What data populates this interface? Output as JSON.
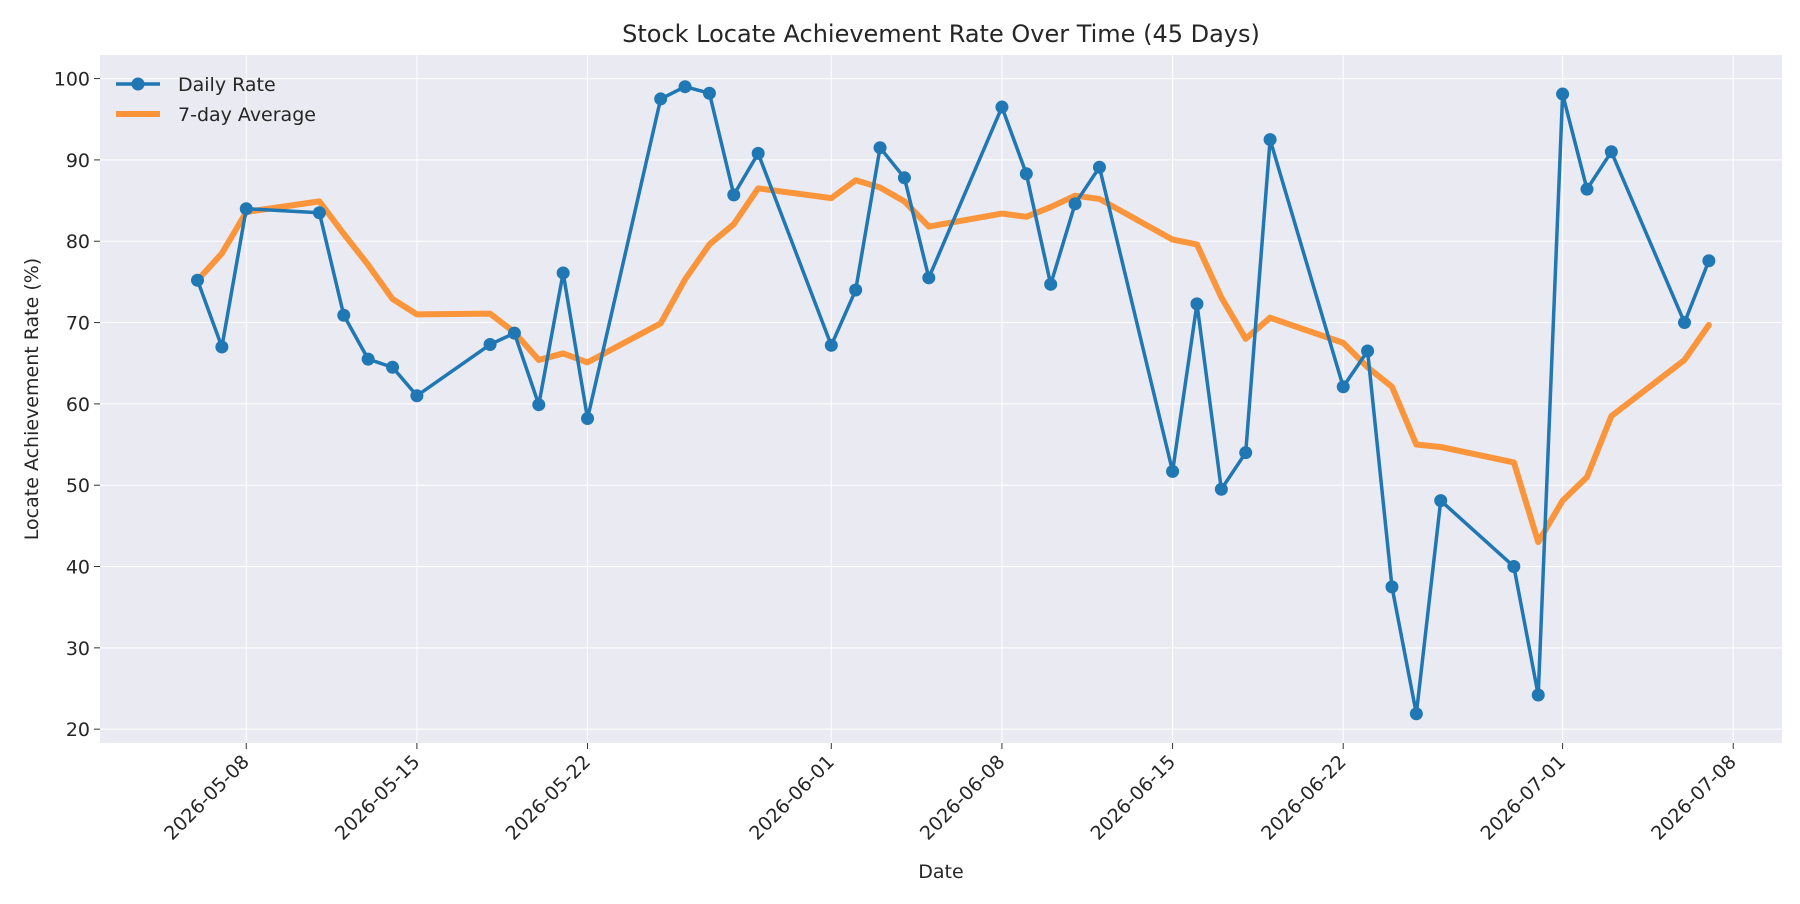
{
  "chart_data": {
    "type": "line",
    "title": "Stock Locate Achievement Rate Over Time (45 Days)",
    "xlabel": "Date",
    "ylabel": "Locate Achievement Rate (%)",
    "x_range": [
      "2026-05-02",
      "2026-07-10"
    ],
    "y_range": [
      18.3,
      102.9
    ],
    "x_ticks": [
      "2026-05-08",
      "2026-05-15",
      "2026-05-22",
      "2026-06-01",
      "2026-06-08",
      "2026-06-15",
      "2026-06-22",
      "2026-07-01",
      "2026-07-08"
    ],
    "y_ticks": [
      20,
      30,
      40,
      50,
      60,
      70,
      80,
      90,
      100
    ],
    "grid": true,
    "legend_position": "top-left",
    "colors": {
      "plot_bg": "#eaeaf2",
      "grid": "#ffffff",
      "daily": "#1f77b4",
      "average": "#ff7f0e"
    },
    "x": [
      "2026-05-06",
      "2026-05-07",
      "2026-05-08",
      "2026-05-11",
      "2026-05-12",
      "2026-05-13",
      "2026-05-14",
      "2026-05-15",
      "2026-05-18",
      "2026-05-19",
      "2026-05-20",
      "2026-05-21",
      "2026-05-22",
      "2026-05-25",
      "2026-05-26",
      "2026-05-27",
      "2026-05-28",
      "2026-05-29",
      "2026-06-01",
      "2026-06-02",
      "2026-06-03",
      "2026-06-04",
      "2026-06-05",
      "2026-06-08",
      "2026-06-09",
      "2026-06-10",
      "2026-06-11",
      "2026-06-12",
      "2026-06-15",
      "2026-06-16",
      "2026-06-17",
      "2026-06-18",
      "2026-06-19",
      "2026-06-22",
      "2026-06-23",
      "2026-06-24",
      "2026-06-25",
      "2026-06-26",
      "2026-06-29",
      "2026-06-30",
      "2026-07-01",
      "2026-07-02",
      "2026-07-03",
      "2026-07-06",
      "2026-07-07"
    ],
    "series": [
      {
        "name": "Daily Rate",
        "marker": "circle",
        "values": [
          75.2,
          67.0,
          84.0,
          83.5,
          70.9,
          65.5,
          64.5,
          61.0,
          67.3,
          68.7,
          59.9,
          76.1,
          58.2,
          97.5,
          99.0,
          98.2,
          85.7,
          90.8,
          67.2,
          74.0,
          91.5,
          87.8,
          75.5,
          96.5,
          88.3,
          74.7,
          84.6,
          89.1,
          51.7,
          72.3,
          49.5,
          54.0,
          92.5,
          62.1,
          66.5,
          37.5,
          21.9,
          48.1,
          40.0,
          24.2,
          98.1,
          86.4,
          91.0,
          70.0,
          77.6
        ]
      },
      {
        "name": "7-day Average",
        "marker": "none",
        "values": [
          75.2,
          78.5,
          83.6,
          84.9,
          80.9,
          77.1,
          72.9,
          71.0,
          71.1,
          68.8,
          65.4,
          66.2,
          65.1,
          69.9,
          75.3,
          79.6,
          82.1,
          86.5,
          85.3,
          87.5,
          86.6,
          84.9,
          81.8,
          83.4,
          83.0,
          84.2,
          85.6,
          85.2,
          80.2,
          79.6,
          73.1,
          68.0,
          70.6,
          67.5,
          64.5,
          62.1,
          55.0,
          54.7,
          52.8,
          43.0,
          48.1,
          51.0,
          58.5,
          65.4,
          69.7
        ]
      }
    ]
  }
}
